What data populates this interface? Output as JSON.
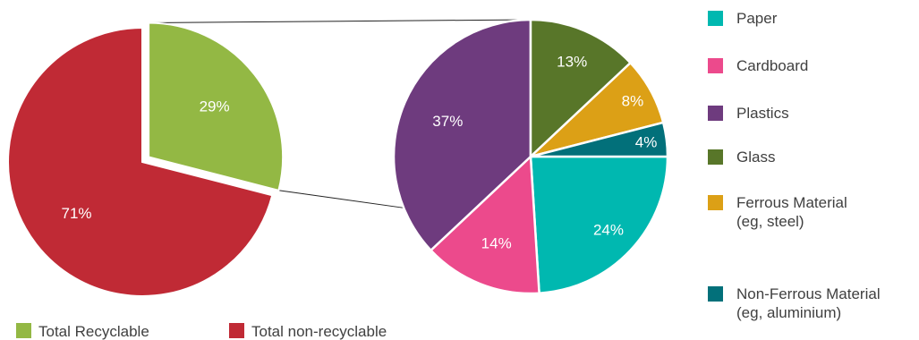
{
  "chart_data": [
    {
      "type": "pie",
      "categories": [
        "Total Recyclable",
        "Total non-recyclable"
      ],
      "values": [
        29,
        71
      ],
      "labels": [
        "29%",
        "71%"
      ],
      "colors": [
        "#93b844",
        "#c02a35"
      ],
      "exploded": "Total Recyclable",
      "legend": "bottom"
    },
    {
      "type": "pie",
      "categories": [
        "Paper",
        "Cardboard",
        "Plastics",
        "Glass",
        "Ferrous Material (eg, steel)",
        "Non-Ferrous Material (eg, aluminium)"
      ],
      "values": [
        24,
        14,
        37,
        13,
        8,
        4
      ],
      "labels": [
        "24%",
        "14%",
        "37%",
        "13%",
        "8%",
        "4%"
      ],
      "colors": [
        "#00b8b0",
        "#ec4a8c",
        "#6e3b7e",
        "#587629",
        "#dca016",
        "#02707a"
      ],
      "legend": "right"
    }
  ],
  "legend_left": [
    {
      "label": "Total Recyclable",
      "color": "#93b844"
    },
    {
      "label": "Total non-recyclable",
      "color": "#c02a35"
    }
  ],
  "legend_right": [
    {
      "lines": [
        "Paper"
      ],
      "color": "#00b8b0"
    },
    {
      "lines": [
        "Cardboard"
      ],
      "color": "#ec4a8c"
    },
    {
      "lines": [
        "Plastics"
      ],
      "color": "#6e3b7e"
    },
    {
      "lines": [
        "Glass"
      ],
      "color": "#587629"
    },
    {
      "lines": [
        "Ferrous Material",
        "(eg, steel)"
      ],
      "color": "#dca016"
    },
    {
      "lines": [
        "Non-Ferrous Material",
        "(eg, aluminium)"
      ],
      "color": "#02707a"
    }
  ]
}
